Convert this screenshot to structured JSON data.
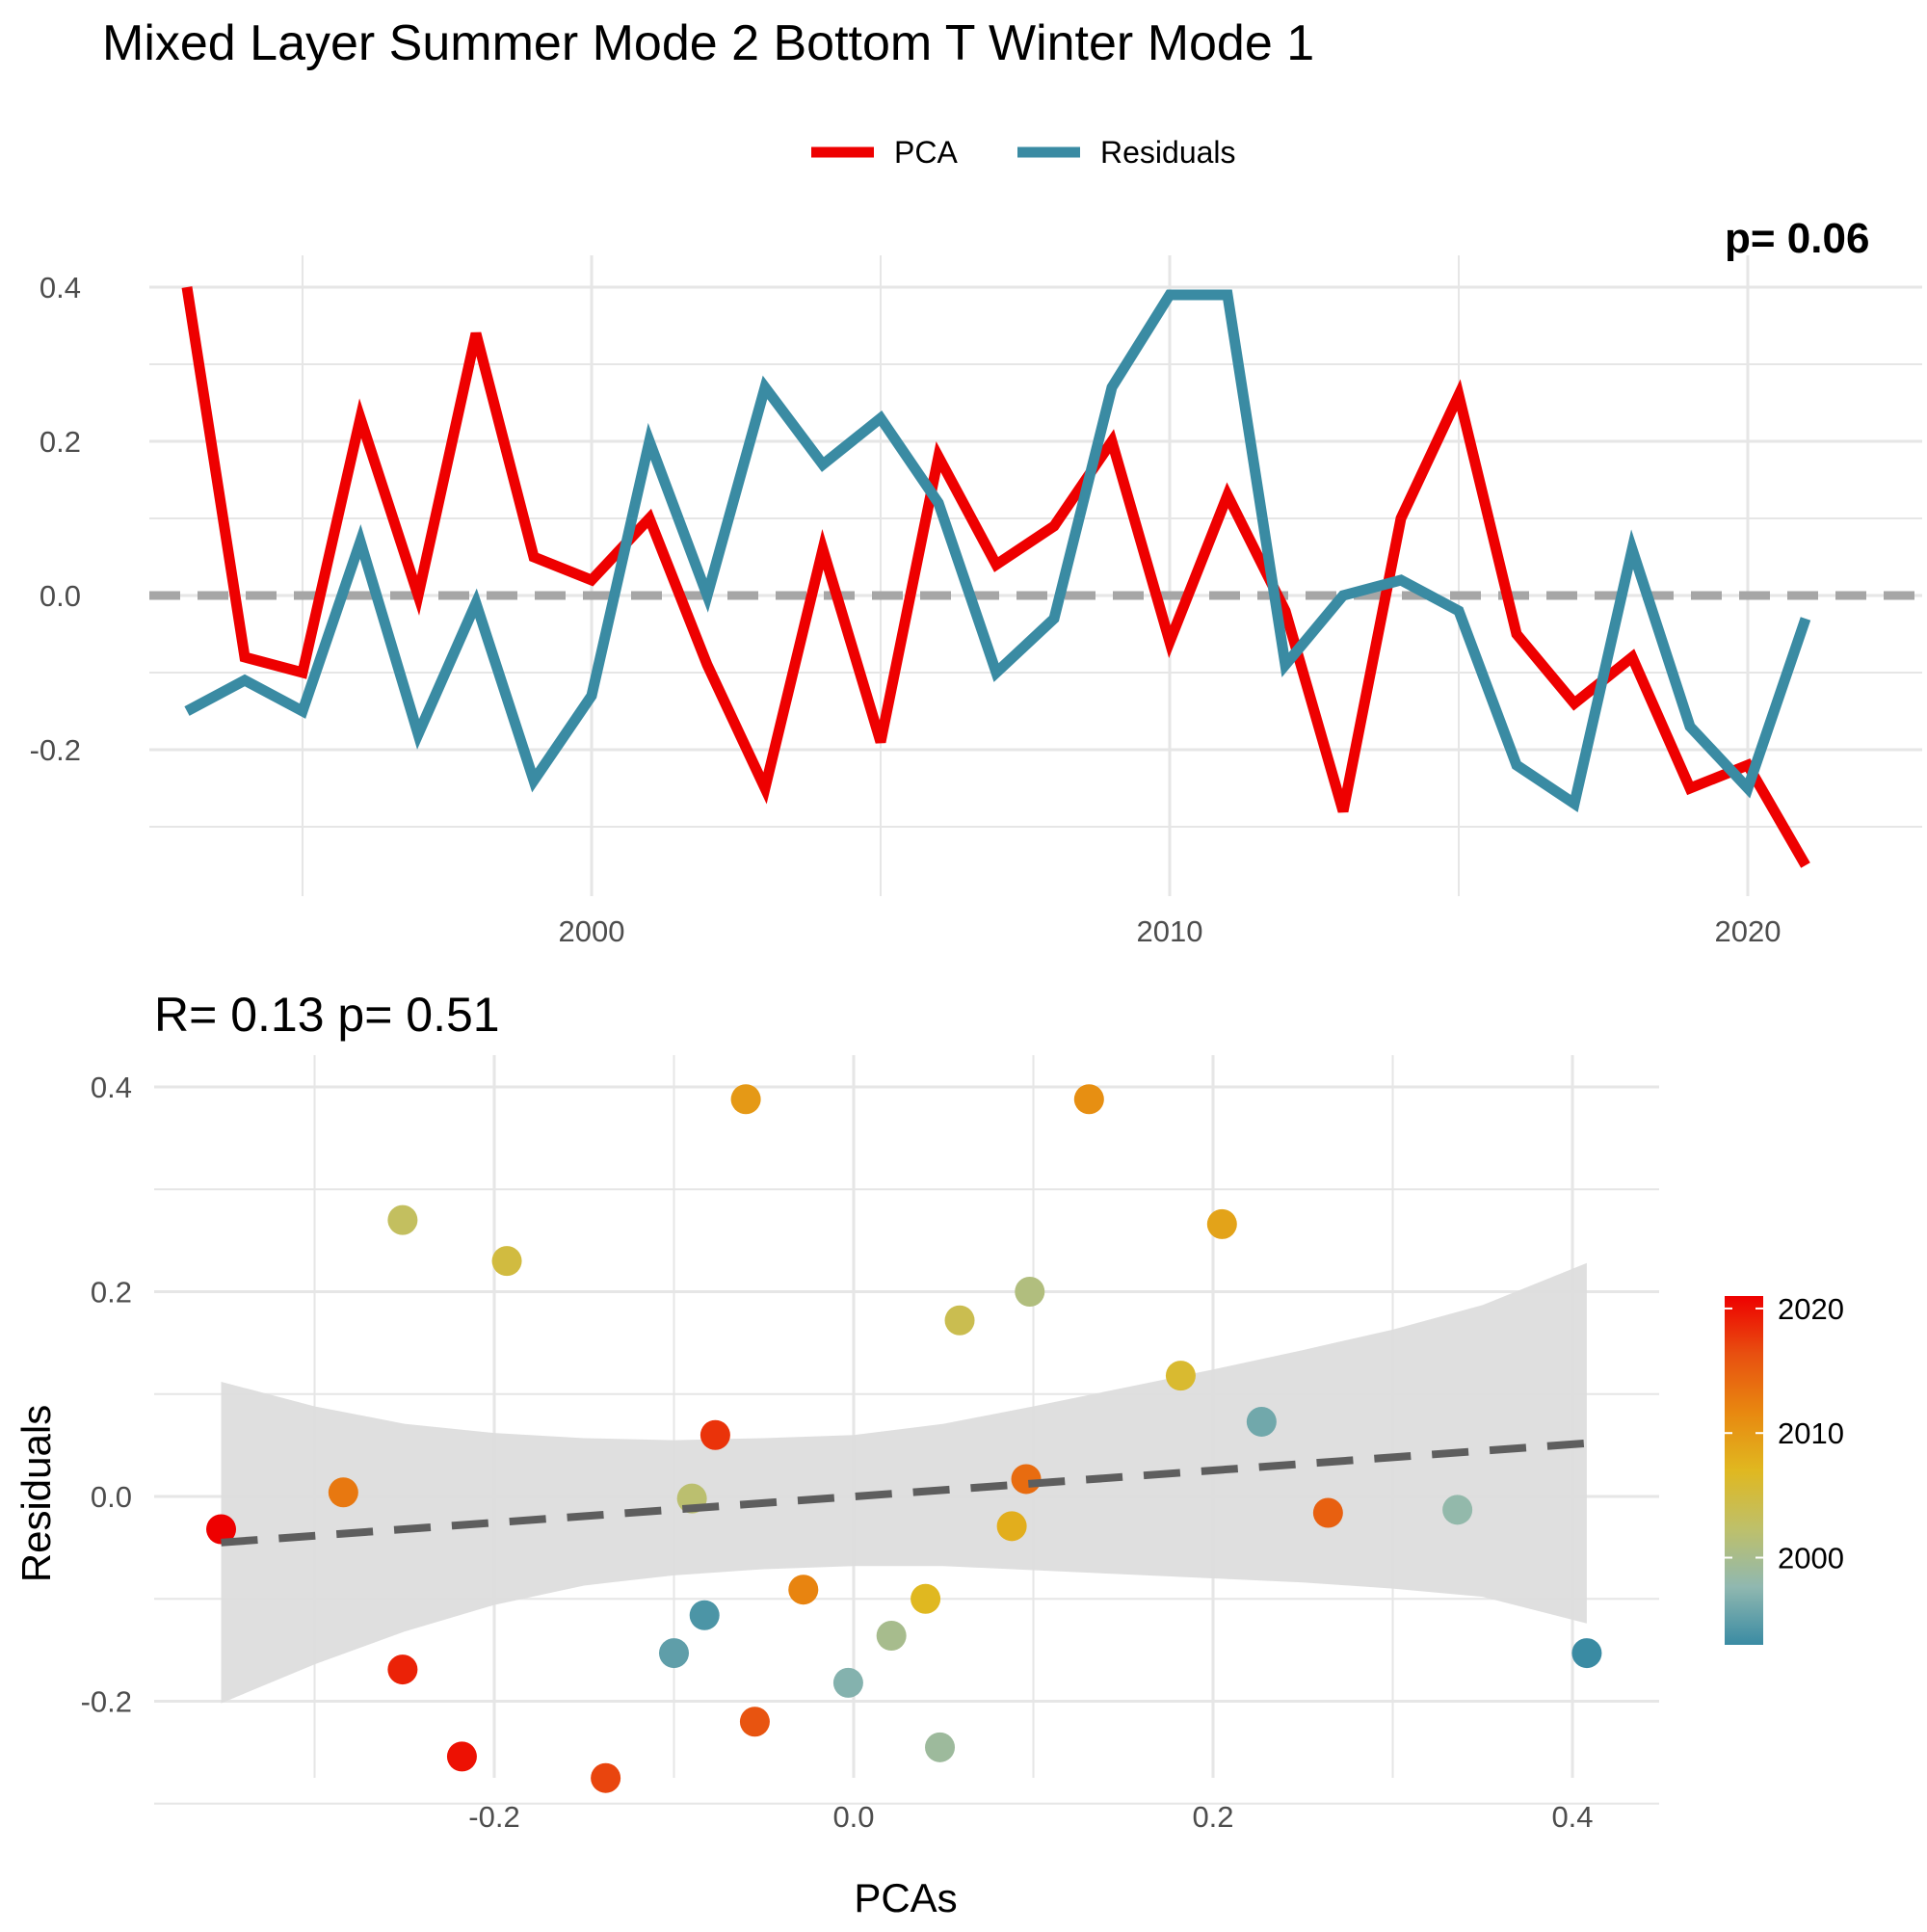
{
  "title": "Mixed Layer Summer Mode 2 Bottom T Winter Mode 1",
  "colors": {
    "pca": "#EE0000",
    "residuals": "#3A8BA3",
    "zero_line": "#A6A6A6",
    "trend": "#5E5E5E",
    "band": "#DDDDDD",
    "grid": "#E6E6E6"
  },
  "chart_data": [
    {
      "type": "line",
      "legend": {
        "placement": "top",
        "entries": [
          "PCA",
          "Residuals"
        ]
      },
      "corner_label": "p= 0.06",
      "x": [
        1993,
        1994,
        1995,
        1996,
        1997,
        1998,
        1999,
        2000,
        2001,
        2002,
        2003,
        2004,
        2005,
        2006,
        2007,
        2008,
        2009,
        2010,
        2011,
        2012,
        2013,
        2014,
        2015,
        2016,
        2017,
        2018,
        2019,
        2020,
        2021
      ],
      "series": [
        {
          "name": "PCA",
          "values": [
            0.4,
            -0.08,
            -0.1,
            0.23,
            0.0,
            0.34,
            0.05,
            0.02,
            0.1,
            -0.09,
            -0.25,
            0.06,
            -0.19,
            0.18,
            0.04,
            0.09,
            0.2,
            -0.06,
            0.13,
            -0.02,
            -0.28,
            0.1,
            0.26,
            -0.05,
            -0.14,
            -0.08,
            -0.25,
            -0.22,
            -0.35
          ]
        },
        {
          "name": "Residuals",
          "values": [
            -0.15,
            -0.11,
            -0.15,
            0.07,
            -0.18,
            -0.01,
            -0.24,
            -0.13,
            0.2,
            0.0,
            0.27,
            0.17,
            0.23,
            0.12,
            -0.1,
            -0.03,
            0.27,
            0.39,
            0.39,
            -0.09,
            0.0,
            0.02,
            -0.02,
            -0.22,
            -0.27,
            0.06,
            -0.17,
            -0.25,
            -0.03
          ]
        }
      ],
      "xticks": [
        2000,
        2010,
        2020
      ],
      "yticks": [
        -0.2,
        0.0,
        0.2,
        0.4
      ],
      "ytick_labels": [
        "-0.2",
        "0.0",
        "0.2",
        "0.4"
      ],
      "xlim": [
        1991.7,
        1994.0
      ],
      "ylim": [
        -0.4,
        0.44
      ],
      "grid": true,
      "hline": 0
    },
    {
      "type": "scatter",
      "stat_label": "R= 0.13  p= 0.51",
      "xlabel": "PCAs",
      "ylabel": "Residuals",
      "xticks": [
        -0.2,
        0.0,
        0.2,
        0.4
      ],
      "xtick_labels": [
        "-0.2",
        "0.0",
        "0.2",
        "0.4"
      ],
      "yticks": [
        -0.2,
        0.0,
        0.2,
        0.4
      ],
      "ytick_labels": [
        "-0.2",
        "0.0",
        "0.2",
        "0.4"
      ],
      "xlim": [
        -0.389,
        0.453
      ],
      "ylim": [
        -0.3,
        0.42
      ],
      "grid": true,
      "points": [
        {
          "x": 0.408,
          "y": -0.153,
          "year": 1993
        },
        {
          "x": -0.083,
          "y": -0.116,
          "year": 1994
        },
        {
          "x": -0.1,
          "y": -0.153,
          "year": 1995
        },
        {
          "x": 0.227,
          "y": 0.073,
          "year": 1996
        },
        {
          "x": -0.003,
          "y": -0.182,
          "year": 1997
        },
        {
          "x": 0.336,
          "y": -0.013,
          "year": 1998
        },
        {
          "x": 0.048,
          "y": -0.245,
          "year": 1999
        },
        {
          "x": 0.021,
          "y": -0.136,
          "year": 2000
        },
        {
          "x": 0.098,
          "y": 0.2,
          "year": 2001
        },
        {
          "x": -0.09,
          "y": -0.002,
          "year": 2002
        },
        {
          "x": -0.251,
          "y": 0.27,
          "year": 2003
        },
        {
          "x": 0.059,
          "y": 0.172,
          "year": 2004
        },
        {
          "x": -0.193,
          "y": 0.23,
          "year": 2005
        },
        {
          "x": 0.182,
          "y": 0.118,
          "year": 2006
        },
        {
          "x": 0.04,
          "y": -0.1,
          "year": 2007
        },
        {
          "x": 0.088,
          "y": -0.029,
          "year": 2008
        },
        {
          "x": 0.205,
          "y": 0.266,
          "year": 2009
        },
        {
          "x": -0.06,
          "y": 0.388,
          "year": 2010
        },
        {
          "x": 0.131,
          "y": 0.388,
          "year": 2011
        },
        {
          "x": -0.028,
          "y": -0.091,
          "year": 2012
        },
        {
          "x": -0.284,
          "y": 0.004,
          "year": 2013
        },
        {
          "x": 0.096,
          "y": 0.017,
          "year": 2014
        },
        {
          "x": 0.264,
          "y": -0.016,
          "year": 2015
        },
        {
          "x": -0.055,
          "y": -0.22,
          "year": 2016
        },
        {
          "x": -0.138,
          "y": -0.275,
          "year": 2017
        },
        {
          "x": -0.077,
          "y": 0.06,
          "year": 2018
        },
        {
          "x": -0.251,
          "y": -0.169,
          "year": 2019
        },
        {
          "x": -0.218,
          "y": -0.254,
          "year": 2020
        },
        {
          "x": -0.352,
          "y": -0.032,
          "year": 2021
        }
      ],
      "trend": {
        "x": [
          -0.352,
          0.408
        ],
        "y": [
          -0.045,
          0.052
        ],
        "style": "dashed"
      },
      "confidence_band": {
        "x": [
          -0.352,
          -0.3,
          -0.25,
          -0.2,
          -0.15,
          -0.1,
          -0.05,
          0.0,
          0.05,
          0.1,
          0.15,
          0.2,
          0.25,
          0.3,
          0.35,
          0.408
        ],
        "upper": [
          0.112,
          0.088,
          0.071,
          0.062,
          0.057,
          0.055,
          0.057,
          0.06,
          0.071,
          0.088,
          0.106,
          0.124,
          0.143,
          0.163,
          0.187,
          0.228
        ],
        "lower": [
          -0.202,
          -0.164,
          -0.132,
          -0.106,
          -0.087,
          -0.077,
          -0.071,
          -0.068,
          -0.068,
          -0.072,
          -0.076,
          -0.08,
          -0.084,
          -0.09,
          -0.098,
          -0.124
        ]
      },
      "colorbar": {
        "ticks": [
          2000,
          2010,
          2020
        ],
        "range": [
          1993,
          2021
        ],
        "stops": [
          "#3A8BA3",
          "#90B8B0",
          "#BEC06A",
          "#E0B820",
          "#E88810",
          "#E85010",
          "#EE0000"
        ]
      }
    }
  ]
}
